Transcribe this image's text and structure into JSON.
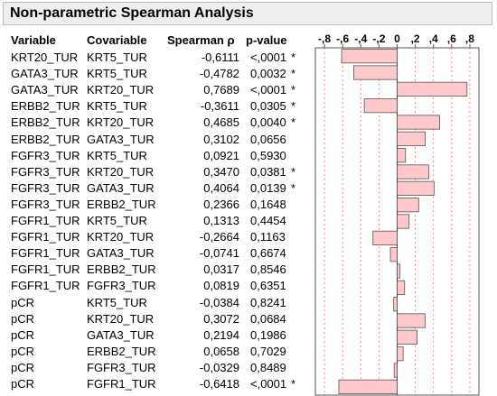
{
  "title": "Non-parametric Spearman Analysis",
  "columns": {
    "variable": "Variable",
    "covariable": "Covariable",
    "spearman": "Spearman ρ",
    "pvalue": "p-value"
  },
  "rows": [
    {
      "variable": "KRT20_TUR",
      "covariable": "KRT5_TUR",
      "spearman": "-0,6111",
      "pvalue": "<,0001",
      "sig": "*"
    },
    {
      "variable": "GATA3_TUR",
      "covariable": "KRT5_TUR",
      "spearman": "-0,4782",
      "pvalue": "0,0032",
      "sig": "*"
    },
    {
      "variable": "GATA3_TUR",
      "covariable": "KRT20_TUR",
      "spearman": "0,7689",
      "pvalue": "<,0001",
      "sig": "*"
    },
    {
      "variable": "ERBB2_TUR",
      "covariable": "KRT5_TUR",
      "spearman": "-0,3611",
      "pvalue": "0,0305",
      "sig": "*"
    },
    {
      "variable": "ERBB2_TUR",
      "covariable": "KRT20_TUR",
      "spearman": "0,4685",
      "pvalue": "0,0040",
      "sig": "*"
    },
    {
      "variable": "ERBB2_TUR",
      "covariable": "GATA3_TUR",
      "spearman": "0,3102",
      "pvalue": "0,0656",
      "sig": ""
    },
    {
      "variable": "FGFR3_TUR",
      "covariable": "KRT5_TUR",
      "spearman": "0,0921",
      "pvalue": "0,5930",
      "sig": ""
    },
    {
      "variable": "FGFR3_TUR",
      "covariable": "KRT20_TUR",
      "spearman": "0,3470",
      "pvalue": "0,0381",
      "sig": "*"
    },
    {
      "variable": "FGFR3_TUR",
      "covariable": "GATA3_TUR",
      "spearman": "0,4064",
      "pvalue": "0,0139",
      "sig": "*"
    },
    {
      "variable": "FGFR3_TUR",
      "covariable": "ERBB2_TUR",
      "spearman": "0,2366",
      "pvalue": "0,1648",
      "sig": ""
    },
    {
      "variable": "FGFR1_TUR",
      "covariable": "KRT5_TUR",
      "spearman": "0,1313",
      "pvalue": "0,4454",
      "sig": ""
    },
    {
      "variable": "FGFR1_TUR",
      "covariable": "KRT20_TUR",
      "spearman": "-0,2664",
      "pvalue": "0,1163",
      "sig": ""
    },
    {
      "variable": "FGFR1_TUR",
      "covariable": "GATA3_TUR",
      "spearman": "-0,0741",
      "pvalue": "0,6674",
      "sig": ""
    },
    {
      "variable": "FGFR1_TUR",
      "covariable": "ERBB2_TUR",
      "spearman": "0,0317",
      "pvalue": "0,8546",
      "sig": ""
    },
    {
      "variable": "FGFR1_TUR",
      "covariable": "FGFR3_TUR",
      "spearman": "0,0819",
      "pvalue": "0,6351",
      "sig": ""
    },
    {
      "variable": "pCR",
      "covariable": "KRT5_TUR",
      "spearman": "-0,0384",
      "pvalue": "0,8241",
      "sig": ""
    },
    {
      "variable": "pCR",
      "covariable": "KRT20_TUR",
      "spearman": "0,3072",
      "pvalue": "0,0684",
      "sig": ""
    },
    {
      "variable": "pCR",
      "covariable": "GATA3_TUR",
      "spearman": "0,2194",
      "pvalue": "0,1986",
      "sig": ""
    },
    {
      "variable": "pCR",
      "covariable": "ERBB2_TUR",
      "spearman": "0,0658",
      "pvalue": "0,7029",
      "sig": ""
    },
    {
      "variable": "pCR",
      "covariable": "FGFR3_TUR",
      "spearman": "-0,0329",
      "pvalue": "0,8489",
      "sig": ""
    },
    {
      "variable": "pCR",
      "covariable": "FGFR1_TUR",
      "spearman": "-0,6418",
      "pvalue": "<,0001",
      "sig": "*"
    }
  ],
  "colors": {
    "bar_fill": "#ffc9cc",
    "bar_stroke": "#555555",
    "grid_dashed": "#ff6b6b",
    "zero_line": "#333333",
    "title_bg": "#eeeeee"
  },
  "chart_data": {
    "type": "bar",
    "orientation": "horizontal",
    "categories": [
      "KRT20_TUR / KRT5_TUR",
      "GATA3_TUR / KRT5_TUR",
      "GATA3_TUR / KRT20_TUR",
      "ERBB2_TUR / KRT5_TUR",
      "ERBB2_TUR / KRT20_TUR",
      "ERBB2_TUR / GATA3_TUR",
      "FGFR3_TUR / KRT5_TUR",
      "FGFR3_TUR / KRT20_TUR",
      "FGFR3_TUR / GATA3_TUR",
      "FGFR3_TUR / ERBB2_TUR",
      "FGFR1_TUR / KRT5_TUR",
      "FGFR1_TUR / KRT20_TUR",
      "FGFR1_TUR / GATA3_TUR",
      "FGFR1_TUR / ERBB2_TUR",
      "FGFR1_TUR / FGFR3_TUR",
      "pCR / KRT5_TUR",
      "pCR / KRT20_TUR",
      "pCR / GATA3_TUR",
      "pCR / ERBB2_TUR",
      "pCR / FGFR3_TUR",
      "pCR / FGFR1_TUR"
    ],
    "values": [
      -0.6111,
      -0.4782,
      0.7689,
      -0.3611,
      0.4685,
      0.3102,
      0.0921,
      0.347,
      0.4064,
      0.2366,
      0.1313,
      -0.2664,
      -0.0741,
      0.0317,
      0.0819,
      -0.0384,
      0.3072,
      0.2194,
      0.0658,
      -0.0329,
      -0.6418
    ],
    "xlim": [
      -0.9,
      0.9
    ],
    "ticks": [
      -0.8,
      -0.6,
      -0.4,
      -0.2,
      0,
      0.2,
      0.4,
      0.6,
      0.8
    ],
    "tick_labels": [
      "-,8",
      "-,6",
      "-,4",
      "-,2",
      "0",
      ",2",
      ",4",
      ",6",
      ",8"
    ],
    "grid": "dashed vertical at ticks",
    "title": "",
    "xlabel": "",
    "ylabel": ""
  }
}
